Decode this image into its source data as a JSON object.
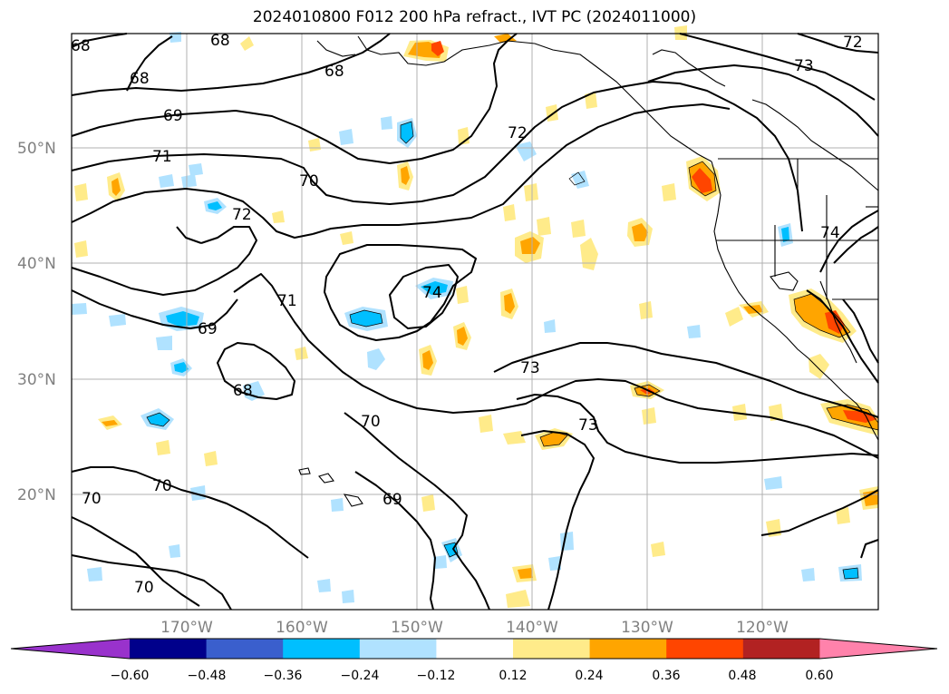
{
  "title": "2024010800 F012 200 hPa refract., IVT PC (2024011000)",
  "latitude_labels": [
    "50°N",
    "40°N",
    "30°N",
    "20°N"
  ],
  "longitude_labels": [
    "170°W",
    "160°W",
    "150°W",
    "140°W",
    "130°W",
    "120°W"
  ],
  "contour_labels": [
    "68",
    "68",
    "68",
    "68",
    "69",
    "71",
    "70",
    "72",
    "71",
    "69",
    "68",
    "70",
    "70",
    "70",
    "69",
    "72",
    "73",
    "74",
    "73",
    "73",
    "74",
    "72"
  ],
  "colorbar": {
    "tick_labels": [
      "−0.60",
      "−0.48",
      "−0.36",
      "−0.24",
      "−0.12",
      "0.12",
      "0.24",
      "0.36",
      "0.48",
      "0.60"
    ],
    "colors": [
      "#9932cc",
      "#00008b",
      "#3a5fcd",
      "#00bfff",
      "#b0e2ff",
      "#ffffff",
      "#ffeb8a",
      "#ffa500",
      "#ff4500",
      "#b22222",
      "#ff82ab"
    ]
  },
  "map": {
    "projection": "cylindrical",
    "grid": true,
    "ocean_color": "#ffffff",
    "contour_color": "#000000"
  }
}
